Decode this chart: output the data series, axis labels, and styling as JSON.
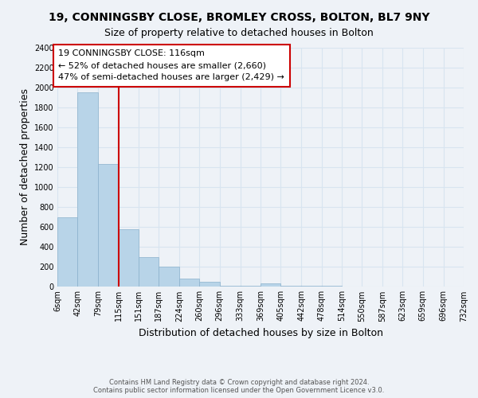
{
  "title": "19, CONNINGSBY CLOSE, BROMLEY CROSS, BOLTON, BL7 9NY",
  "subtitle": "Size of property relative to detached houses in Bolton",
  "xlabel": "Distribution of detached houses by size in Bolton",
  "ylabel": "Number of detached properties",
  "bar_color": "#b8d4e8",
  "bin_edges": [
    6,
    42,
    79,
    115,
    151,
    187,
    224,
    260,
    296,
    333,
    369,
    405,
    442,
    478,
    514,
    550,
    587,
    623,
    659,
    696,
    732
  ],
  "bar_heights": [
    700,
    1950,
    1230,
    575,
    300,
    200,
    80,
    45,
    10,
    10,
    35,
    10,
    5,
    5,
    3,
    2,
    2,
    2,
    2,
    2
  ],
  "tick_labels": [
    "6sqm",
    "42sqm",
    "79sqm",
    "115sqm",
    "151sqm",
    "187sqm",
    "224sqm",
    "260sqm",
    "296sqm",
    "333sqm",
    "369sqm",
    "405sqm",
    "442sqm",
    "478sqm",
    "514sqm",
    "550sqm",
    "587sqm",
    "623sqm",
    "659sqm",
    "696sqm",
    "732sqm"
  ],
  "property_line_x": 115,
  "property_line_color": "#cc0000",
  "annotation_line1": "19 CONNINGSBY CLOSE: 116sqm",
  "annotation_line2": "← 52% of detached houses are smaller (2,660)",
  "annotation_line3": "47% of semi-detached houses are larger (2,429) →",
  "ylim": [
    0,
    2400
  ],
  "yticks": [
    0,
    200,
    400,
    600,
    800,
    1000,
    1200,
    1400,
    1600,
    1800,
    2000,
    2200,
    2400
  ],
  "footer_text": "Contains HM Land Registry data © Crown copyright and database right 2024.\nContains public sector information licensed under the Open Government Licence v3.0.",
  "background_color": "#eef2f7",
  "grid_color": "#d8e4f0",
  "title_fontsize": 10,
  "subtitle_fontsize": 9,
  "label_fontsize": 9,
  "tick_fontsize": 7,
  "annotation_fontsize": 8
}
